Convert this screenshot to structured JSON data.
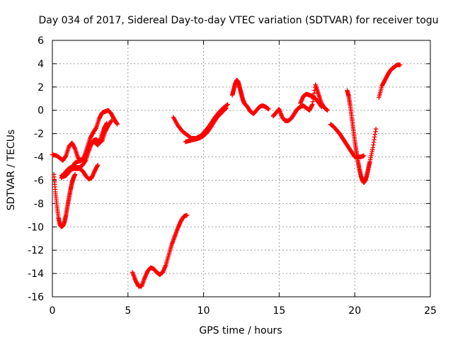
{
  "chart_data": {
    "type": "scatter",
    "title": "Day 034 of 2017, Sidereal Day-to-day VTEC variation (SDTVAR) for receiver togu",
    "xlabel": "GPS time / hours",
    "ylabel": "SDTVAR / TECUs",
    "xlim": [
      0,
      25
    ],
    "ylim": [
      -16,
      6
    ],
    "xticks": [
      "0",
      "5",
      "10",
      "15",
      "20",
      "25"
    ],
    "yticks": [
      "6",
      "4",
      "2",
      "0",
      "-2",
      "-4",
      "-6",
      "-8",
      "-10",
      "-12",
      "-14",
      "-16"
    ],
    "grid": true,
    "marker": "+",
    "color": "#ff0000",
    "series": [
      {
        "x": [
          0.0,
          0.3,
          0.5,
          0.7,
          0.9,
          1.1,
          1.3,
          1.5,
          1.7,
          1.9,
          2.1,
          2.3,
          2.5,
          2.7,
          2.9,
          3.1,
          3.3,
          3.5,
          3.7,
          3.9,
          4.1,
          4.3
        ],
        "y": [
          -3.8,
          -3.9,
          -4.1,
          -4.3,
          -3.9,
          -3.1,
          -2.8,
          -3.3,
          -4.1,
          -4.3,
          -4.0,
          -3.2,
          -2.4,
          -1.9,
          -1.5,
          -0.7,
          -0.2,
          -0.1,
          0.0,
          -0.3,
          -0.8,
          -1.2
        ]
      },
      {
        "x": [
          0.1,
          0.2,
          0.3,
          0.4,
          0.5,
          0.6,
          0.7,
          0.8,
          0.9,
          1.0,
          1.1,
          1.2,
          1.3,
          1.4,
          1.5
        ],
        "y": [
          -5.5,
          -7.0,
          -8.2,
          -9.2,
          -9.8,
          -10.0,
          -9.9,
          -9.6,
          -9.0,
          -8.2,
          -7.5,
          -6.8,
          -6.2,
          -5.8,
          -5.5
        ]
      },
      {
        "x": [
          0.6,
          0.8,
          1.0,
          1.2,
          1.4,
          1.6,
          1.8,
          2.0,
          2.2,
          2.4,
          2.6,
          2.8,
          3.0
        ],
        "y": [
          -5.6,
          -5.5,
          -5.3,
          -5.1,
          -5.0,
          -5.0,
          -5.0,
          -5.2,
          -5.6,
          -5.9,
          -5.8,
          -5.2,
          -4.7
        ]
      },
      {
        "x": [
          0.7,
          0.9,
          1.1,
          1.3,
          1.5,
          1.7,
          1.9,
          2.1,
          2.3,
          2.5,
          2.7,
          2.9,
          3.1,
          3.3,
          3.5,
          3.7,
          3.9
        ],
        "y": [
          -5.7,
          -5.6,
          -5.3,
          -4.9,
          -4.5,
          -4.4,
          -4.3,
          -4.1,
          -3.5,
          -3.0,
          -2.6,
          -2.5,
          -2.8,
          -2.6,
          -1.8,
          -1.3,
          -0.9
        ]
      },
      {
        "x": [
          0.6,
          0.8,
          1.0,
          1.2,
          1.4,
          1.6,
          1.8,
          2.0,
          2.2,
          2.4,
          2.6,
          2.8,
          3.0,
          3.2,
          3.4,
          3.6
        ],
        "y": [
          -5.8,
          -5.4,
          -5.1,
          -4.9,
          -4.8,
          -4.9,
          -4.9,
          -4.7,
          -4.3,
          -3.5,
          -2.8,
          -2.7,
          -3.0,
          -2.4,
          -1.6,
          -1.1
        ]
      },
      {
        "x": [
          5.3,
          5.5,
          5.7,
          5.9,
          6.1,
          6.3,
          6.5,
          6.7,
          6.9,
          7.1,
          7.3,
          7.5,
          7.7,
          7.9,
          8.1,
          8.3,
          8.5,
          8.7,
          8.9
        ],
        "y": [
          -13.9,
          -14.6,
          -15.1,
          -15.1,
          -14.4,
          -13.8,
          -13.5,
          -13.6,
          -13.9,
          -14.1,
          -13.9,
          -13.3,
          -12.4,
          -11.5,
          -10.8,
          -10.1,
          -9.5,
          -9.1,
          -9.0
        ]
      },
      {
        "x": [
          8.0,
          8.3,
          8.6,
          8.9,
          9.2,
          9.5,
          9.8,
          10.1,
          10.4,
          10.7,
          11.0,
          11.3,
          11.6
        ],
        "y": [
          -0.6,
          -1.3,
          -1.8,
          -2.1,
          -2.4,
          -2.4,
          -2.2,
          -1.8,
          -1.3,
          -0.7,
          -0.2,
          0.2,
          0.5
        ]
      },
      {
        "x": [
          8.8,
          9.1,
          9.4,
          9.7,
          10.0,
          10.3,
          10.6,
          10.9,
          11.2,
          11.5
        ],
        "y": [
          -2.7,
          -2.6,
          -2.5,
          -2.4,
          -2.2,
          -1.8,
          -1.2,
          -0.6,
          -0.2,
          0.2
        ]
      },
      {
        "x": [
          11.9,
          12.0,
          12.1,
          12.2,
          12.3,
          12.4,
          12.5,
          12.6,
          12.7,
          12.9,
          13.1,
          13.3,
          13.5,
          13.7,
          13.9,
          14.1,
          14.3
        ],
        "y": [
          1.3,
          1.8,
          2.3,
          2.6,
          2.4,
          1.9,
          1.4,
          0.9,
          0.6,
          0.3,
          -0.1,
          -0.3,
          0.0,
          0.3,
          0.4,
          0.3,
          0.1
        ]
      },
      {
        "x": [
          14.6,
          14.8,
          15.0,
          15.2,
          15.4,
          15.6,
          15.8,
          16.0,
          16.2,
          16.4,
          16.6,
          16.8,
          17.0,
          17.2,
          17.4,
          17.6,
          17.8,
          18.0,
          18.2
        ],
        "y": [
          -0.5,
          -0.2,
          0.1,
          -0.6,
          -0.9,
          -0.9,
          -0.7,
          -0.3,
          0.1,
          0.3,
          0.4,
          0.2,
          0.0,
          0.5,
          2.2,
          1.4,
          0.6,
          0.2,
          0.0
        ]
      },
      {
        "x": [
          16.4,
          16.6,
          16.8,
          17.0,
          17.2,
          17.4,
          17.6,
          17.8
        ],
        "y": [
          0.6,
          1.2,
          1.4,
          1.3,
          1.2,
          1.0,
          0.7,
          0.3
        ]
      },
      {
        "x": [
          18.4,
          18.6,
          18.8,
          19.0,
          19.2,
          19.4,
          19.6,
          19.8,
          20.0,
          20.2,
          20.4,
          20.6
        ],
        "y": [
          -1.2,
          -1.4,
          -1.7,
          -2.0,
          -2.4,
          -2.8,
          -3.2,
          -3.6,
          -4.0,
          -4.0,
          -4.0,
          -3.9
        ]
      },
      {
        "x": [
          19.5,
          19.6,
          19.7,
          19.8,
          19.9,
          20.0,
          20.1,
          20.2,
          20.3,
          20.4,
          20.5,
          20.6,
          20.7,
          20.8,
          20.9,
          21.0,
          21.2,
          21.4
        ],
        "y": [
          1.7,
          1.2,
          0.4,
          -0.6,
          -1.6,
          -2.6,
          -3.5,
          -4.3,
          -5.0,
          -5.6,
          -6.0,
          -6.2,
          -6.0,
          -5.6,
          -5.0,
          -4.4,
          -3.2,
          -1.6
        ]
      },
      {
        "x": [
          21.6,
          21.8,
          22.0,
          22.2,
          22.4,
          22.6,
          22.8,
          23.0
        ],
        "y": [
          1.1,
          2.1,
          2.6,
          3.1,
          3.5,
          3.7,
          3.9,
          3.9
        ]
      }
    ]
  }
}
